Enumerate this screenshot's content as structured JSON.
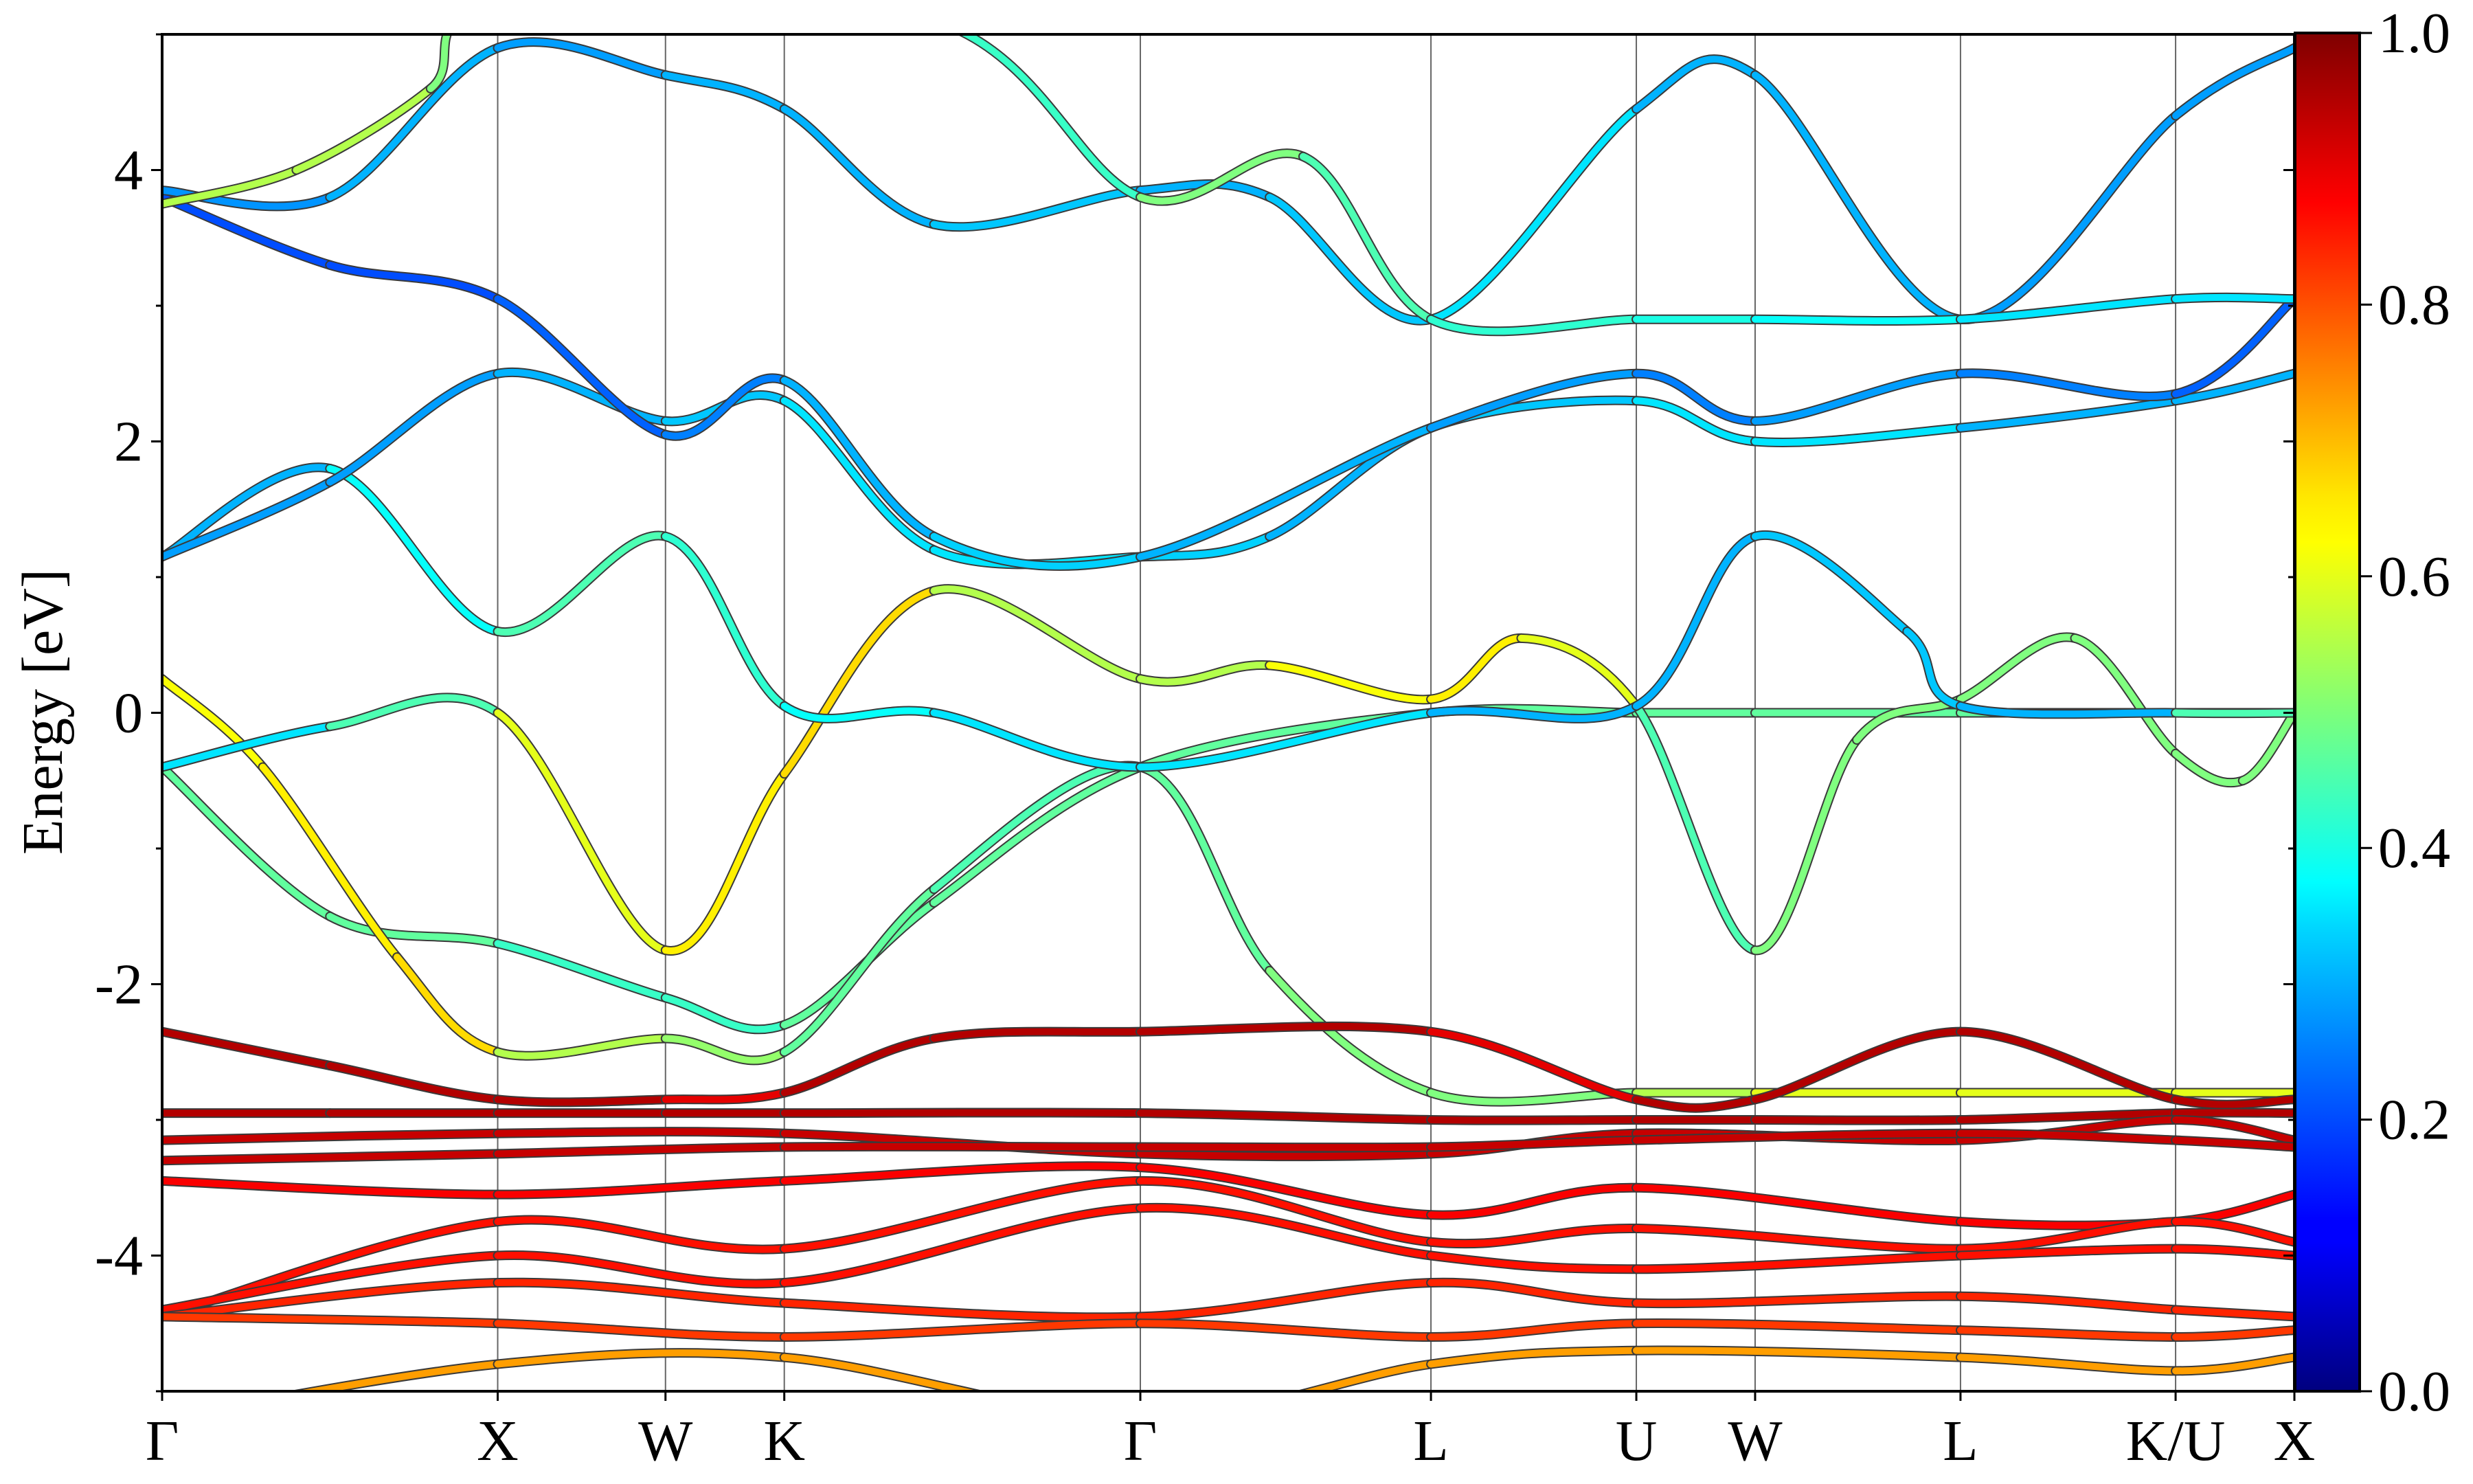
{
  "chart_data": {
    "type": "line",
    "ylabel": "Energy [eV]",
    "xlabel": "",
    "title": "",
    "ylim": [
      -5,
      5
    ],
    "yticks": [
      -4,
      -2,
      0,
      2,
      4
    ],
    "ytick_labels": [
      "-4",
      "-2",
      "0",
      "2",
      "4"
    ],
    "kpath_labels": [
      "Γ",
      "X",
      "W",
      "K",
      "Γ",
      "L",
      "U",
      "W",
      "L",
      "K/U",
      "X"
    ],
    "kpath_positions": [
      0.0,
      1.0,
      1.5,
      1.854,
      2.915,
      3.781,
      4.393,
      4.747,
      5.359,
      6.0,
      6.354
    ],
    "grid": "vertical lines at high-symmetry points",
    "colorbar": {
      "colormap": "jet",
      "range": [
        0.0,
        1.0
      ],
      "ticks": [
        0.0,
        0.2,
        0.4,
        0.6,
        0.8,
        1.0
      ],
      "tick_labels": [
        "0.0",
        "0.2",
        "0.4",
        "0.6",
        "0.8",
        "1.0"
      ],
      "position": "right"
    },
    "series": [
      {
        "weights": [
          0.47,
          0.47,
          0.43,
          0.43,
          0.47,
          0.47,
          0.47,
          0.47,
          0.47,
          0.47,
          0.47
        ],
        "values": [
          [
            0,
            -0.4
          ],
          [
            0.5,
            -1.5
          ],
          [
            1.0,
            -1.7
          ],
          [
            1.5,
            -2.1
          ],
          [
            1.854,
            -2.3
          ],
          [
            2.3,
            -1.4
          ],
          [
            2.915,
            -0.4
          ],
          [
            3.781,
            0.0
          ],
          [
            4.393,
            0.0
          ],
          [
            4.747,
            0.0
          ],
          [
            5.359,
            0.0
          ],
          [
            6.0,
            0.0
          ],
          [
            6.354,
            0.0
          ]
        ]
      },
      {
        "weights": [
          0.62,
          0.64,
          0.66,
          0.55,
          0.52,
          0.47,
          0.45,
          0.47,
          0.5,
          0.5,
          0.55,
          0.6
        ],
        "values": [
          [
            0,
            0.25
          ],
          [
            0.3,
            -0.4
          ],
          [
            0.7,
            -1.8
          ],
          [
            1.0,
            -2.5
          ],
          [
            1.5,
            -2.4
          ],
          [
            1.854,
            -2.5
          ],
          [
            2.3,
            -1.3
          ],
          [
            2.915,
            -0.4
          ],
          [
            3.3,
            -1.9
          ],
          [
            3.781,
            -2.8
          ],
          [
            4.393,
            -2.8
          ],
          [
            4.747,
            -2.8
          ],
          [
            5.359,
            -2.8
          ],
          [
            6.0,
            -2.8
          ],
          [
            6.354,
            -2.8
          ]
        ]
      },
      {
        "weights": [
          0.35,
          0.45,
          0.6,
          0.64,
          0.66,
          0.55,
          0.55,
          0.62,
          0.64,
          0.6,
          0.45,
          0.5
        ],
        "values": [
          [
            0,
            -0.4
          ],
          [
            0.5,
            -0.1
          ],
          [
            1.0,
            0.0
          ],
          [
            1.5,
            -1.75
          ],
          [
            1.854,
            -0.45
          ],
          [
            2.3,
            0.9
          ],
          [
            2.915,
            0.25
          ],
          [
            3.3,
            0.35
          ],
          [
            3.781,
            0.1
          ],
          [
            4.05,
            0.55
          ],
          [
            4.393,
            0.05
          ],
          [
            4.747,
            -1.75
          ],
          [
            5.05,
            -0.2
          ],
          [
            5.359,
            0.1
          ],
          [
            5.7,
            0.55
          ],
          [
            6.0,
            -0.3
          ],
          [
            6.2,
            -0.5
          ],
          [
            6.354,
            0.0
          ]
        ]
      },
      {
        "weights": [
          0.3,
          0.38,
          0.45,
          0.42,
          0.38,
          0.35,
          0.35,
          0.3,
          0.3,
          0.32,
          0.32,
          0.3,
          0.45
        ],
        "values": [
          [
            0,
            1.15
          ],
          [
            0.5,
            1.8
          ],
          [
            1.0,
            0.6
          ],
          [
            1.5,
            1.3
          ],
          [
            1.854,
            0.05
          ],
          [
            2.3,
            0.0
          ],
          [
            2.915,
            -0.4
          ],
          [
            3.781,
            0.0
          ],
          [
            4.393,
            0.05
          ],
          [
            4.747,
            1.3
          ],
          [
            5.2,
            0.6
          ],
          [
            5.359,
            0.05
          ],
          [
            6.0,
            0.0
          ],
          [
            6.354,
            0.0
          ]
        ]
      },
      {
        "weights": [
          0.28,
          0.28,
          0.3,
          0.32,
          0.35,
          0.35,
          0.33,
          0.3,
          0.32,
          0.35,
          0.35,
          0.3,
          0.3
        ],
        "values": [
          [
            0,
            1.15
          ],
          [
            0.5,
            1.7
          ],
          [
            1.0,
            2.5
          ],
          [
            1.5,
            2.15
          ],
          [
            1.854,
            2.3
          ],
          [
            2.3,
            1.2
          ],
          [
            2.915,
            1.15
          ],
          [
            3.3,
            1.3
          ],
          [
            3.781,
            2.1
          ],
          [
            4.393,
            2.3
          ],
          [
            4.747,
            2.0
          ],
          [
            5.359,
            2.1
          ],
          [
            6.0,
            2.3
          ],
          [
            6.354,
            2.5
          ]
        ]
      },
      {
        "weights": [
          0.2,
          0.2,
          0.22,
          0.25,
          0.3,
          0.33,
          0.3,
          0.28,
          0.25,
          0.28,
          0.25,
          0.22
        ],
        "values": [
          [
            0,
            3.8
          ],
          [
            0.5,
            3.3
          ],
          [
            1.0,
            3.05
          ],
          [
            1.5,
            2.05
          ],
          [
            1.854,
            2.45
          ],
          [
            2.3,
            1.3
          ],
          [
            2.915,
            1.15
          ],
          [
            3.781,
            2.1
          ],
          [
            4.393,
            2.5
          ],
          [
            4.747,
            2.15
          ],
          [
            5.359,
            2.5
          ],
          [
            6.0,
            2.35
          ],
          [
            6.354,
            3.05
          ]
        ]
      },
      {
        "weights": [
          0.27,
          0.3,
          0.28,
          0.3,
          0.3,
          0.32,
          0.3,
          0.32,
          0.35,
          0.3,
          0.3,
          0.28
        ],
        "values": [
          [
            0,
            3.85
          ],
          [
            0.5,
            3.8
          ],
          [
            1.0,
            4.9
          ],
          [
            1.5,
            4.7
          ],
          [
            1.854,
            4.45
          ],
          [
            2.3,
            3.6
          ],
          [
            2.915,
            3.85
          ],
          [
            3.3,
            3.8
          ],
          [
            3.781,
            2.9
          ],
          [
            4.393,
            4.45
          ],
          [
            4.747,
            4.7
          ],
          [
            5.359,
            2.9
          ],
          [
            6.0,
            4.4
          ],
          [
            6.354,
            4.9
          ]
        ]
      },
      {
        "weights": [
          0.55,
          0.55,
          0.5,
          0.45,
          0.43,
          0.5,
          0.45,
          0.42,
          0.4,
          0.38,
          0.35,
          0.35
        ],
        "values": [
          [
            0,
            3.75
          ],
          [
            0.4,
            4.0
          ],
          [
            0.8,
            4.6
          ],
          [
            1.0,
            5.2
          ],
          [
            2.3,
            5.1
          ],
          [
            2.915,
            3.8
          ],
          [
            3.4,
            4.1
          ],
          [
            3.781,
            2.9
          ],
          [
            4.393,
            2.9
          ],
          [
            4.747,
            2.9
          ],
          [
            5.359,
            2.9
          ],
          [
            6.0,
            3.05
          ],
          [
            6.354,
            3.05
          ]
        ]
      },
      {
        "weights": [
          0.95,
          0.95,
          0.95,
          0.9,
          0.95,
          0.95,
          0.95,
          0.9,
          0.95,
          0.95
        ],
        "values": [
          [
            0,
            -2.35
          ],
          [
            0.5,
            -2.6
          ],
          [
            1.0,
            -2.85
          ],
          [
            1.5,
            -2.85
          ],
          [
            1.854,
            -2.8
          ],
          [
            2.3,
            -2.4
          ],
          [
            2.915,
            -2.35
          ],
          [
            3.781,
            -2.35
          ],
          [
            4.393,
            -2.85
          ],
          [
            4.747,
            -2.85
          ],
          [
            5.359,
            -2.35
          ],
          [
            6.0,
            -2.85
          ],
          [
            6.354,
            -2.85
          ]
        ]
      },
      {
        "weights": [
          0.95,
          0.95,
          0.95,
          0.95,
          0.95,
          0.95,
          0.95,
          0.95,
          0.95,
          0.95
        ],
        "values": [
          [
            0,
            -2.95
          ],
          [
            0.5,
            -2.95
          ],
          [
            1.0,
            -2.95
          ],
          [
            1.5,
            -2.95
          ],
          [
            1.854,
            -2.95
          ],
          [
            2.915,
            -2.95
          ],
          [
            3.781,
            -3.0
          ],
          [
            4.393,
            -3.0
          ],
          [
            4.747,
            -3.0
          ],
          [
            5.359,
            -3.0
          ],
          [
            6.0,
            -2.95
          ],
          [
            6.354,
            -2.95
          ]
        ]
      },
      {
        "weights": [
          0.93,
          0.93,
          0.93,
          0.93,
          0.93,
          0.93,
          0.93,
          0.93,
          0.93,
          0.93
        ],
        "values": [
          [
            0,
            -3.15
          ],
          [
            1.0,
            -3.1
          ],
          [
            1.854,
            -3.1
          ],
          [
            2.915,
            -3.25
          ],
          [
            3.781,
            -3.25
          ],
          [
            4.393,
            -3.1
          ],
          [
            5.359,
            -3.15
          ],
          [
            6.0,
            -3.0
          ],
          [
            6.354,
            -3.15
          ]
        ]
      },
      {
        "weights": [
          0.93,
          0.93,
          0.93,
          0.93,
          0.93,
          0.93,
          0.93,
          0.93
        ],
        "values": [
          [
            0,
            -3.3
          ],
          [
            1.0,
            -3.25
          ],
          [
            1.854,
            -3.2
          ],
          [
            2.915,
            -3.2
          ],
          [
            3.781,
            -3.2
          ],
          [
            4.393,
            -3.15
          ],
          [
            5.359,
            -3.1
          ],
          [
            6.0,
            -3.15
          ],
          [
            6.354,
            -3.2
          ]
        ]
      },
      {
        "weights": [
          0.88,
          0.88,
          0.88,
          0.88,
          0.88,
          0.88,
          0.88,
          0.88
        ],
        "values": [
          [
            0,
            -3.45
          ],
          [
            1.0,
            -3.55
          ],
          [
            1.854,
            -3.45
          ],
          [
            2.915,
            -3.35
          ],
          [
            3.781,
            -3.7
          ],
          [
            4.393,
            -3.5
          ],
          [
            5.359,
            -3.75
          ],
          [
            6.0,
            -3.75
          ],
          [
            6.354,
            -3.55
          ]
        ]
      },
      {
        "weights": [
          0.86,
          0.86,
          0.86,
          0.86,
          0.86,
          0.86,
          0.86,
          0.86
        ],
        "values": [
          [
            0,
            -4.45
          ],
          [
            1.0,
            -3.75
          ],
          [
            1.854,
            -3.95
          ],
          [
            2.915,
            -3.45
          ],
          [
            3.781,
            -3.9
          ],
          [
            4.393,
            -3.8
          ],
          [
            5.359,
            -3.95
          ],
          [
            6.0,
            -3.75
          ],
          [
            6.354,
            -3.9
          ]
        ]
      },
      {
        "weights": [
          0.86,
          0.86,
          0.86,
          0.86,
          0.86,
          0.86,
          0.86,
          0.86
        ],
        "values": [
          [
            0,
            -4.4
          ],
          [
            1.0,
            -4.0
          ],
          [
            1.854,
            -4.2
          ],
          [
            2.915,
            -3.65
          ],
          [
            3.781,
            -4.0
          ],
          [
            4.393,
            -4.1
          ],
          [
            5.359,
            -4.0
          ],
          [
            6.0,
            -3.95
          ],
          [
            6.354,
            -4.0
          ]
        ]
      },
      {
        "weights": [
          0.84,
          0.84,
          0.84,
          0.84,
          0.84,
          0.84,
          0.84,
          0.84
        ],
        "values": [
          [
            0,
            -4.45
          ],
          [
            1.0,
            -4.2
          ],
          [
            1.854,
            -4.35
          ],
          [
            2.915,
            -4.45
          ],
          [
            3.781,
            -4.2
          ],
          [
            4.393,
            -4.35
          ],
          [
            5.359,
            -4.3
          ],
          [
            6.0,
            -4.4
          ],
          [
            6.354,
            -4.45
          ]
        ]
      },
      {
        "weights": [
          0.82,
          0.82,
          0.82,
          0.82,
          0.82,
          0.82,
          0.82,
          0.82
        ],
        "values": [
          [
            0,
            -4.45
          ],
          [
            1.0,
            -4.5
          ],
          [
            1.854,
            -4.6
          ],
          [
            2.915,
            -4.5
          ],
          [
            3.781,
            -4.6
          ],
          [
            4.393,
            -4.5
          ],
          [
            5.359,
            -4.55
          ],
          [
            6.0,
            -4.6
          ],
          [
            6.354,
            -4.55
          ]
        ]
      },
      {
        "weights": [
          0.72,
          0.72,
          0.72,
          0.72,
          0.72,
          0.72,
          0.72
        ],
        "values": [
          [
            0,
            -5.2
          ],
          [
            1.0,
            -4.8
          ],
          [
            1.854,
            -4.75
          ],
          [
            2.915,
            -5.2
          ],
          [
            3.781,
            -4.8
          ],
          [
            4.393,
            -4.7
          ],
          [
            5.359,
            -4.75
          ],
          [
            6.0,
            -4.85
          ],
          [
            6.354,
            -4.75
          ]
        ]
      }
    ]
  }
}
